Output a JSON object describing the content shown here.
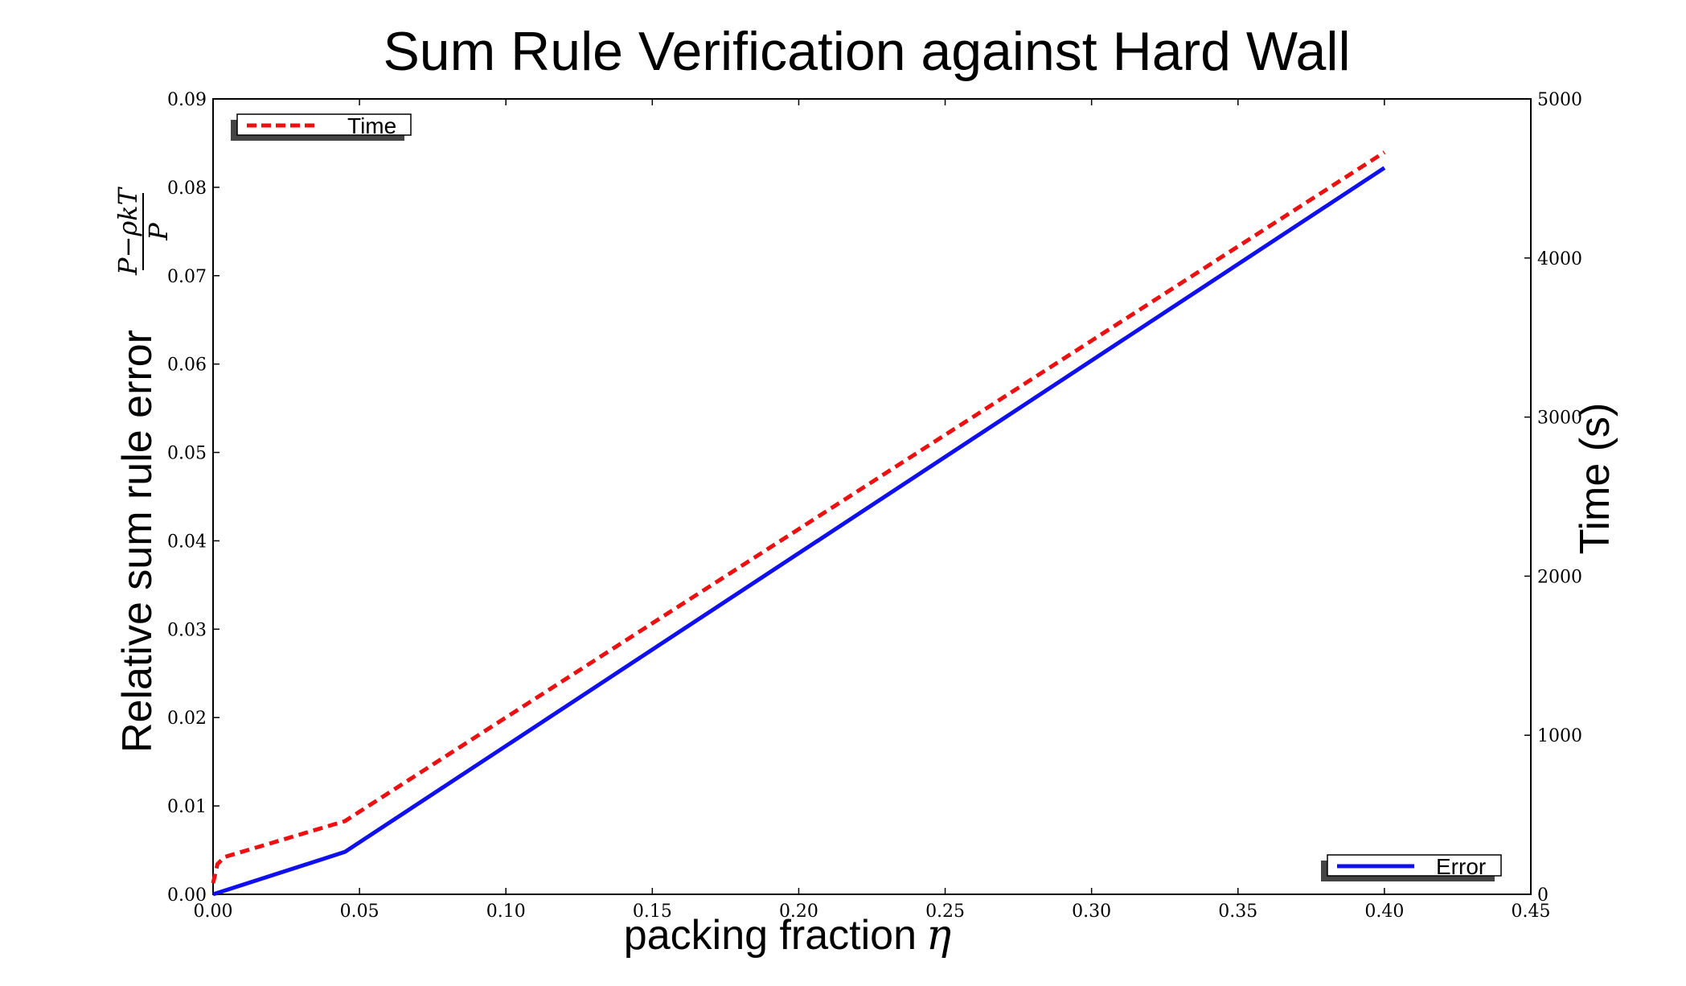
{
  "chart_data": {
    "type": "line",
    "title": "Sum Rule Verification against Hard Wall",
    "xlabel": "packing fraction",
    "xlabel_symbol": "η",
    "ylabel": "Relative sum rule error",
    "ylabel_fraction": {
      "numerator": "P−ρkT",
      "denominator": "P"
    },
    "y2label": "Time (s)",
    "xlim": [
      0,
      0.45
    ],
    "ylim": [
      0,
      0.09
    ],
    "y2lim": [
      0,
      5000
    ],
    "x_ticks": [
      "0.00",
      "0.05",
      "0.10",
      "0.15",
      "0.20",
      "0.25",
      "0.30",
      "0.35",
      "0.40",
      "0.45"
    ],
    "y_ticks": [
      "0.00",
      "0.01",
      "0.02",
      "0.03",
      "0.04",
      "0.05",
      "0.06",
      "0.07",
      "0.08",
      "0.09"
    ],
    "y2_ticks": [
      "0",
      "1000",
      "2000",
      "3000",
      "4000",
      "5000"
    ],
    "grid": false,
    "series": [
      {
        "name": "Error",
        "axis": "left",
        "color": "#1010ee",
        "style": "solid",
        "legend_position": "lower-right",
        "points": [
          [
            0.0,
            0.0
          ],
          [
            0.045,
            0.0048
          ],
          [
            0.4,
            0.0822
          ]
        ]
      },
      {
        "name": "Time",
        "axis": "right",
        "color": "#ee1010",
        "style": "dashed",
        "legend_position": "upper-left",
        "points": [
          [
            0.0,
            70
          ],
          [
            0.0015,
            190
          ],
          [
            0.004,
            235
          ],
          [
            0.045,
            460
          ],
          [
            0.4,
            4665
          ]
        ]
      }
    ]
  }
}
